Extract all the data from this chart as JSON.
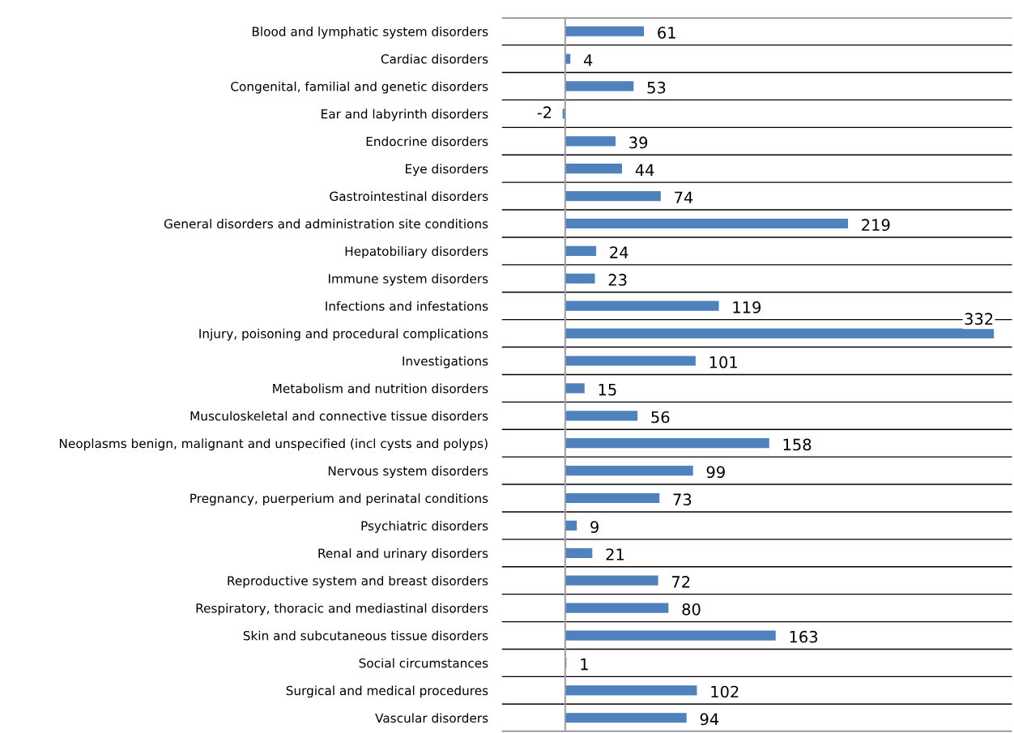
{
  "chart_data": {
    "type": "bar",
    "orientation": "horizontal",
    "categories": [
      "Blood and lymphatic system disorders",
      "Cardiac disorders",
      "Congenital, familial and genetic disorders",
      "Ear and labyrinth disorders",
      "Endocrine disorders",
      "Eye disorders",
      "Gastrointestinal disorders",
      "General disorders and administration site conditions",
      "Hepatobiliary disorders",
      "Immune system disorders",
      "Infections and infestations",
      "Injury, poisoning and procedural complications",
      "Investigations",
      "Metabolism and nutrition disorders",
      "Musculoskeletal and connective tissue disorders",
      "Neoplasms benign, malignant and unspecified (incl cysts and polyps)",
      "Nervous system disorders",
      "Pregnancy, puerperium and perinatal conditions",
      "Psychiatric disorders",
      "Renal and urinary disorders",
      "Reproductive system and breast disorders",
      "Respiratory, thoracic and mediastinal disorders",
      "Skin and subcutaneous tissue disorders",
      "Social circumstances",
      "Surgical and medical procedures",
      "Vascular disorders"
    ],
    "values": [
      61,
      4,
      53,
      -2,
      39,
      44,
      74,
      219,
      24,
      23,
      119,
      332,
      101,
      15,
      56,
      158,
      99,
      73,
      9,
      21,
      72,
      80,
      163,
      1,
      102,
      94
    ],
    "color": "#4f81bd",
    "xlim": [
      -49,
      346
    ],
    "tick_labels": "y",
    "grid": "y",
    "data_labels": true,
    "legend": false
  }
}
